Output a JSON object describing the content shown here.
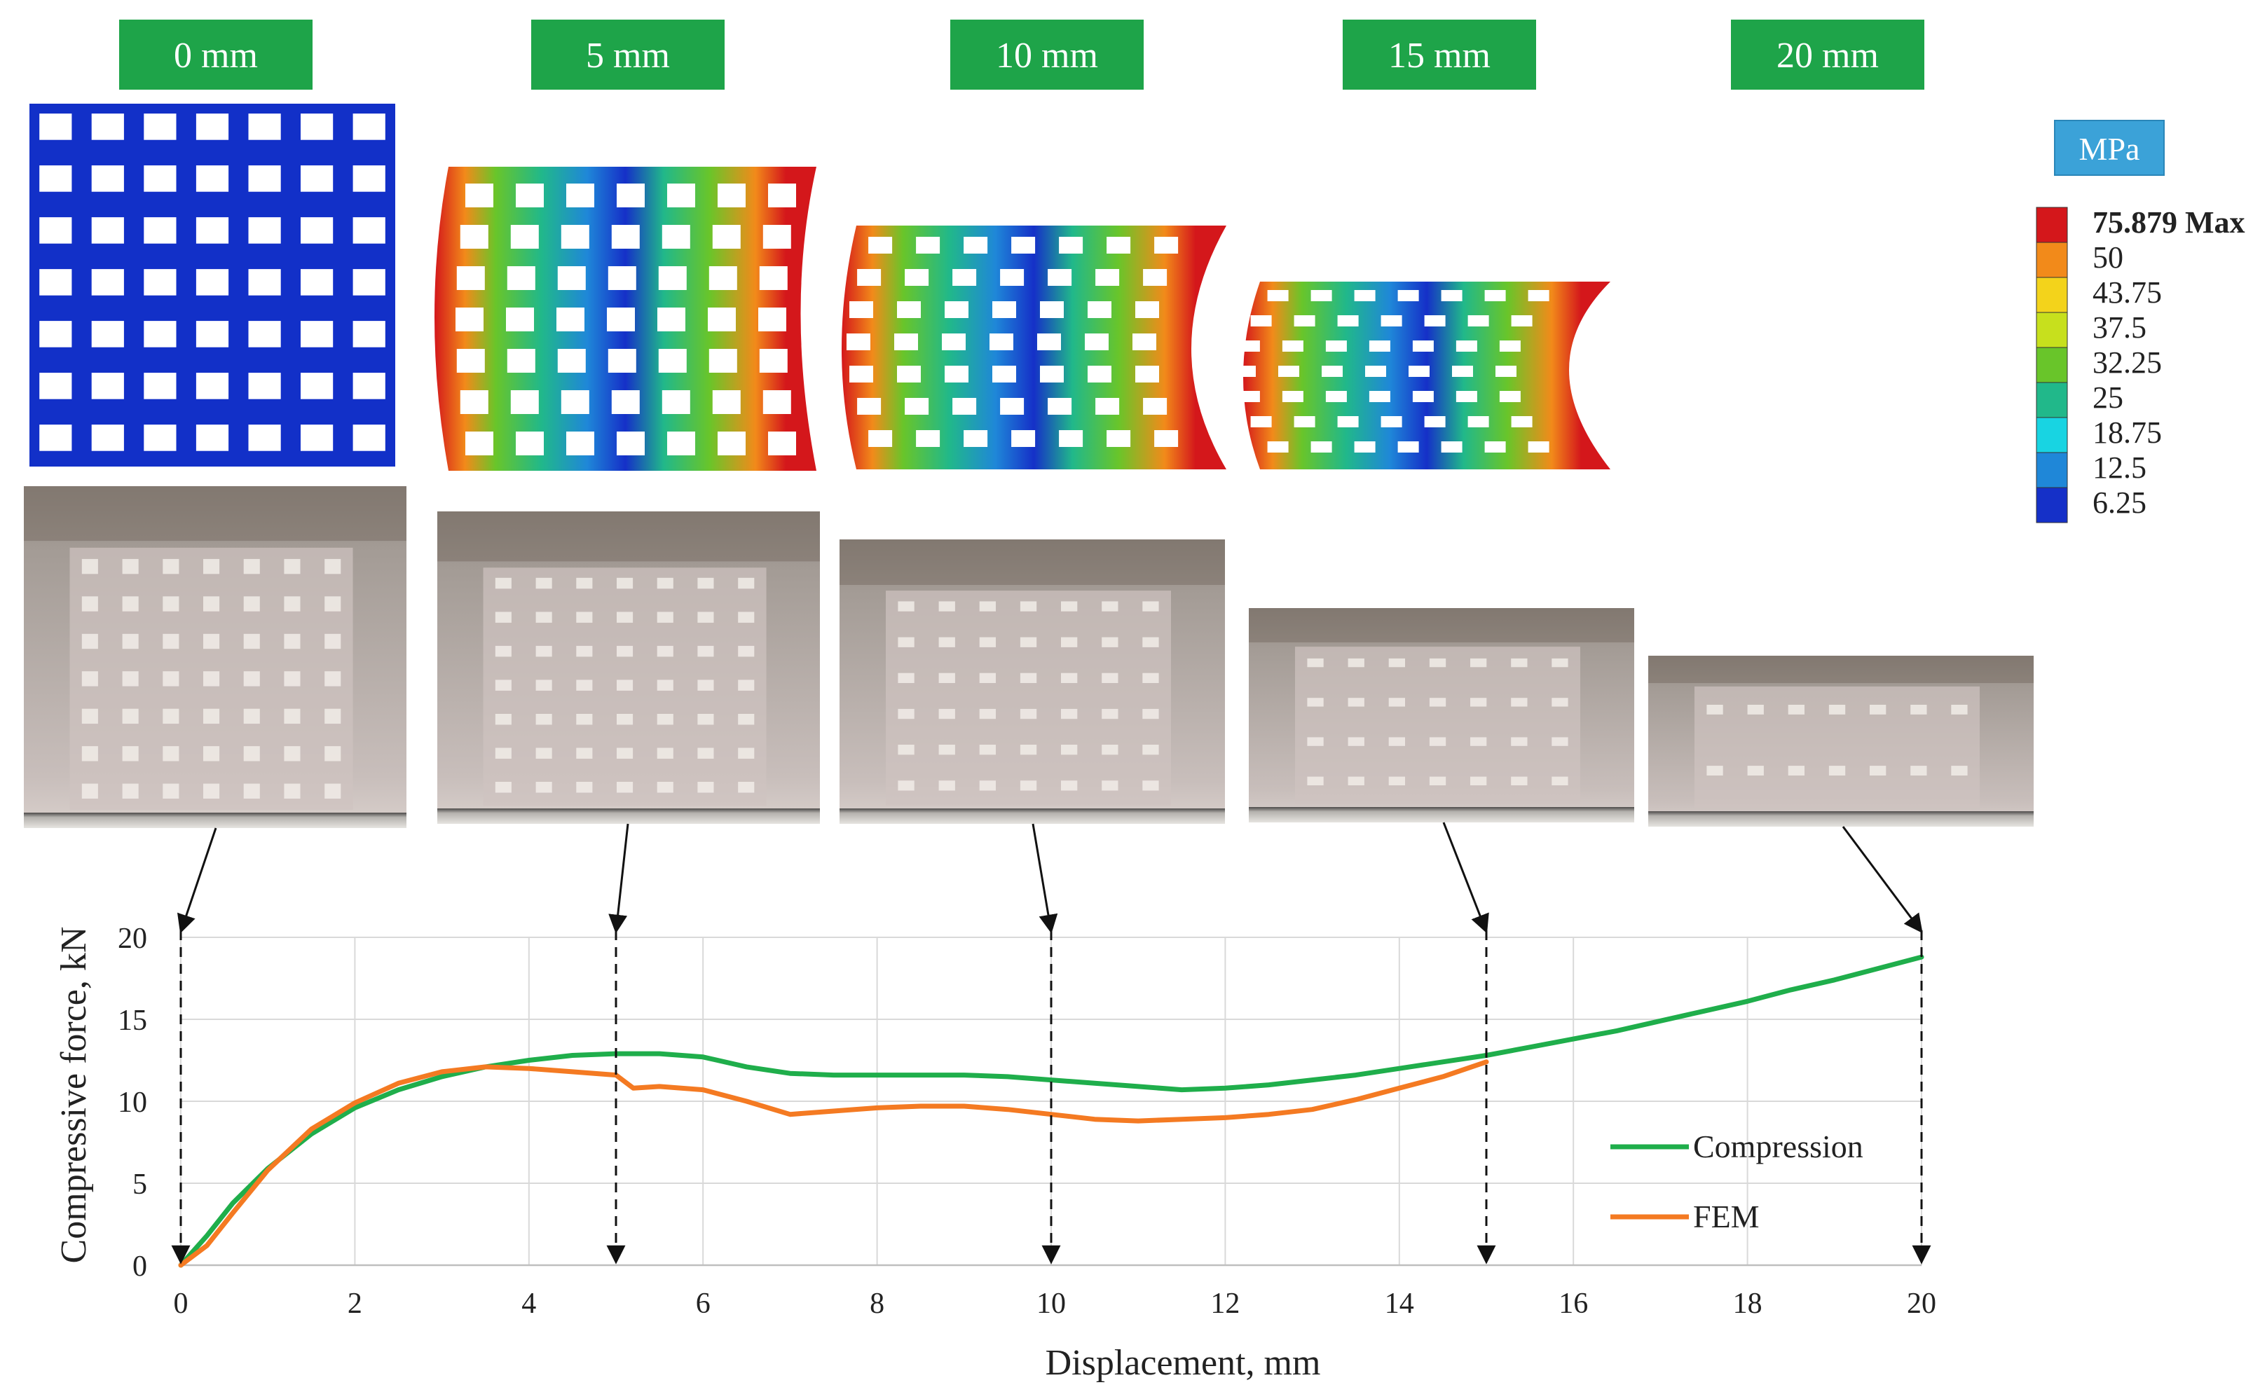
{
  "stages": [
    {
      "label": "0 mm"
    },
    {
      "label": "5 mm"
    },
    {
      "label": "10 mm"
    },
    {
      "label": "15 mm"
    },
    {
      "label": "20 mm"
    }
  ],
  "colors": {
    "label_box": "#1ea449",
    "compression": "#1fae4b",
    "fem": "#f47a22",
    "mesh_blue": "#1230c8",
    "legend_box": "#3ba2d8"
  },
  "stress_legend": {
    "unit": "MPa",
    "levels": [
      "75.879 Max",
      "50",
      "43.75",
      "37.5",
      "32.25",
      "25",
      "18.75",
      "12.5",
      "6.25"
    ],
    "colors": [
      "#d4171b",
      "#f28a1a",
      "#f3d31b",
      "#c7e01d",
      "#69c52a",
      "#21b88a",
      "#18d4e2",
      "#1f87d8",
      "#1530c8"
    ]
  },
  "chart_data": {
    "type": "line",
    "xlabel": "Displacement, mm",
    "ylabel": "Compressive force, kN",
    "xlim": [
      0,
      20
    ],
    "ylim": [
      0,
      20
    ],
    "xticks": [
      0,
      2,
      4,
      6,
      8,
      10,
      12,
      14,
      16,
      18,
      20
    ],
    "yticks": [
      0,
      5,
      10,
      15,
      20
    ],
    "grid": true,
    "legend_position": "bottom-right",
    "markers_x": [
      0,
      5,
      10,
      15,
      20
    ],
    "series": [
      {
        "name": "Compression",
        "x": [
          0,
          0.3,
          0.6,
          1.0,
          1.5,
          2.0,
          2.5,
          3.0,
          3.5,
          4.0,
          4.5,
          5.0,
          5.5,
          6.0,
          6.5,
          7.0,
          7.5,
          8.0,
          8.5,
          9.0,
          9.5,
          10.0,
          10.5,
          11.0,
          11.5,
          12.0,
          12.5,
          13.0,
          13.5,
          14.0,
          14.5,
          15.0,
          15.5,
          16.0,
          16.5,
          17.0,
          17.5,
          18.0,
          18.5,
          19.0,
          19.5,
          20.0
        ],
        "y": [
          0,
          1.8,
          3.8,
          5.9,
          8.0,
          9.6,
          10.7,
          11.5,
          12.1,
          12.5,
          12.8,
          12.9,
          12.9,
          12.7,
          12.1,
          11.7,
          11.6,
          11.6,
          11.6,
          11.6,
          11.5,
          11.3,
          11.1,
          10.9,
          10.7,
          10.8,
          11.0,
          11.3,
          11.6,
          12.0,
          12.4,
          12.8,
          13.3,
          13.8,
          14.3,
          14.9,
          15.5,
          16.1,
          16.8,
          17.4,
          18.1,
          18.8
        ]
      },
      {
        "name": "FEM",
        "x": [
          0,
          0.3,
          0.6,
          1.0,
          1.5,
          2.0,
          2.5,
          3.0,
          3.5,
          4.0,
          4.5,
          5.0,
          5.2,
          5.5,
          6.0,
          6.5,
          7.0,
          7.5,
          8.0,
          8.5,
          9.0,
          9.5,
          10.0,
          10.5,
          11.0,
          11.5,
          12.0,
          12.5,
          13.0,
          13.5,
          14.0,
          14.5,
          15.0
        ],
        "y": [
          0,
          1.2,
          3.2,
          5.8,
          8.3,
          9.9,
          11.1,
          11.8,
          12.1,
          12.0,
          11.8,
          11.6,
          10.8,
          10.9,
          10.7,
          10.0,
          9.2,
          9.4,
          9.6,
          9.7,
          9.7,
          9.5,
          9.2,
          8.9,
          8.8,
          8.9,
          9.0,
          9.2,
          9.5,
          10.1,
          10.8,
          11.5,
          12.4
        ]
      }
    ]
  }
}
